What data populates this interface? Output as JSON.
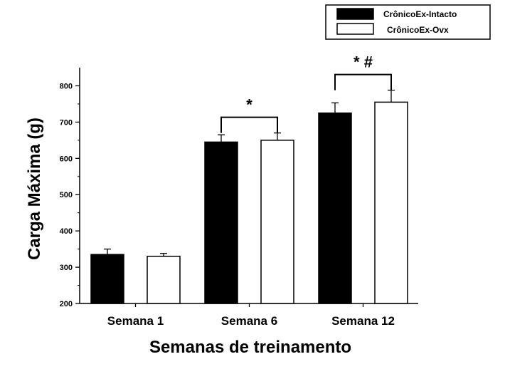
{
  "chart_data": {
    "type": "bar",
    "xlabel": "Semanas de treinamento",
    "ylabel": "Carga Máxima (g)",
    "ylim": [
      200,
      850
    ],
    "yticks": [
      200,
      300,
      400,
      500,
      600,
      700,
      800
    ],
    "categories": [
      "Semana 1",
      "Semana 6",
      "Semana 12"
    ],
    "series": [
      {
        "name": "CrônicoEx-Intacto",
        "fill": "#000000",
        "values": [
          335,
          645,
          725
        ],
        "errors": [
          15,
          20,
          28
        ]
      },
      {
        "name": "CrônicoEx-Ovx",
        "fill": "#ffffff",
        "values": [
          330,
          650,
          755
        ],
        "errors": [
          8,
          20,
          33
        ]
      }
    ],
    "annotations": [
      {
        "category": "Semana 6",
        "text": "*"
      },
      {
        "category": "Semana 12",
        "text": "* #"
      }
    ],
    "legend": "top-right",
    "grid": false
  }
}
